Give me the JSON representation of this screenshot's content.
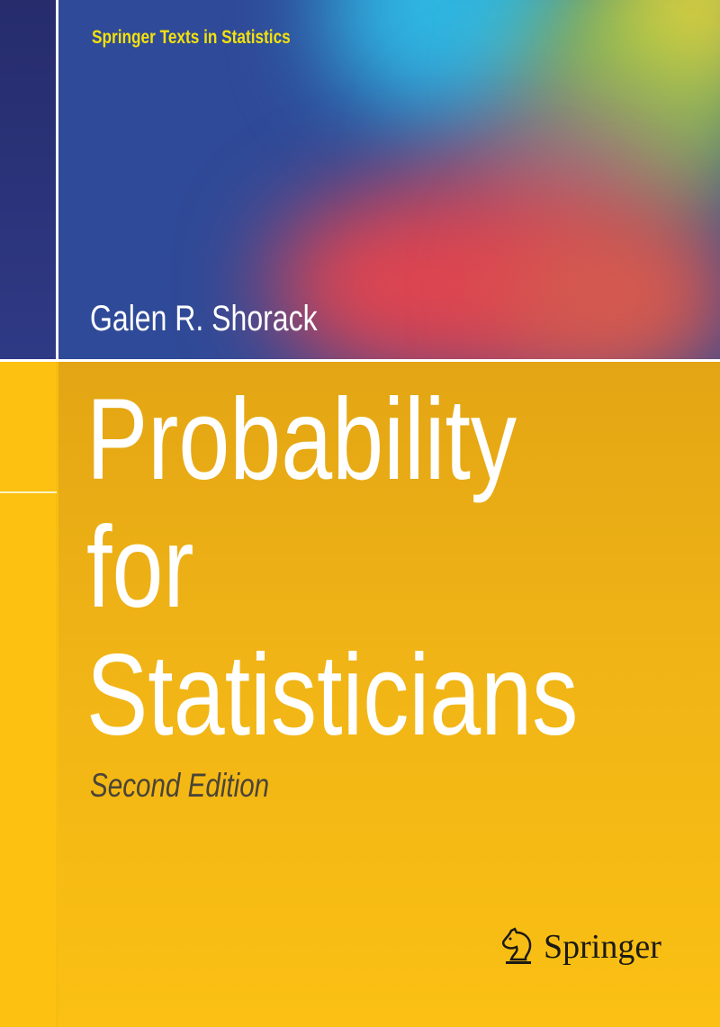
{
  "cover": {
    "series": "Springer Texts in Statistics",
    "author": "Galen R. Shorack",
    "title_lines": [
      "Probability",
      "for",
      "Statisticians"
    ],
    "edition": "Second Edition",
    "publisher": "Springer"
  },
  "colors": {
    "series_text": "#f4e10c",
    "background_yellow": "#f7b812",
    "background_blue": "#2f4a98"
  }
}
